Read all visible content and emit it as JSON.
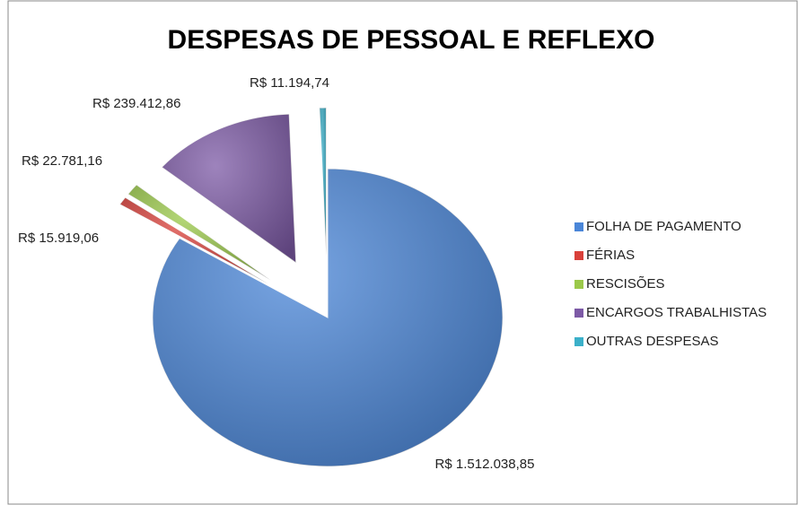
{
  "chart_data": {
    "type": "pie",
    "title": "DESPESAS DE PESSOAL E REFLEXO",
    "categories": [
      "FOLHA DE PAGAMENTO",
      "FÉRIAS",
      "RESCISÕES",
      "ENCARGOS TRABALHISTAS",
      "OUTRAS DESPESAS"
    ],
    "values": [
      1512038.85,
      15919.06,
      22781.16,
      239412.86,
      11194.74
    ],
    "value_labels": [
      "R$ 1.512.038,85",
      "R$ 15.919,06",
      "R$ 22.781,16",
      "R$ 239.412,86",
      "R$ 11.194,74"
    ],
    "colors": [
      "#4a86d8",
      "#d9403a",
      "#9bc94a",
      "#7d5aa6",
      "#3bb0c9"
    ],
    "legend": "right"
  }
}
